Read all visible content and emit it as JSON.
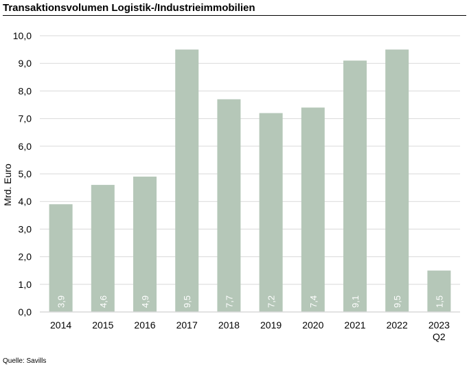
{
  "title": "Transaktionsvolumen Logistik-/Industrieimmobilien",
  "source": "Quelle: Savills",
  "colors": {
    "bar": "#b5c7b8",
    "grid": "#d9d9d9",
    "axis": "#000000",
    "bar_label": "#ffffff",
    "text": "#000000"
  },
  "chart_data": {
    "type": "bar",
    "categories": [
      "2014",
      "2015",
      "2016",
      "2017",
      "2018",
      "2019",
      "2020",
      "2021",
      "2022",
      "2023\nQ2"
    ],
    "values": [
      3.9,
      4.6,
      4.9,
      9.5,
      7.7,
      7.2,
      7.4,
      9.1,
      9.5,
      1.5
    ],
    "value_labels": [
      "3,9",
      "4,6",
      "4,9",
      "9,5",
      "7,7",
      "7,2",
      "7,4",
      "9,1",
      "9,5",
      "1,5"
    ],
    "title": "Transaktionsvolumen Logistik-/Industrieimmobilien",
    "xlabel": "",
    "ylabel": "Mrd. Euro",
    "ylim": [
      0,
      10
    ],
    "yticks": [
      0,
      1,
      2,
      3,
      4,
      5,
      6,
      7,
      8,
      9,
      10
    ],
    "ytick_labels": [
      "0,0",
      "1,0",
      "2,0",
      "3,0",
      "4,0",
      "5,0",
      "6,0",
      "7,0",
      "8,0",
      "9,0",
      "10,0"
    ],
    "grid": true,
    "legend": "none"
  }
}
